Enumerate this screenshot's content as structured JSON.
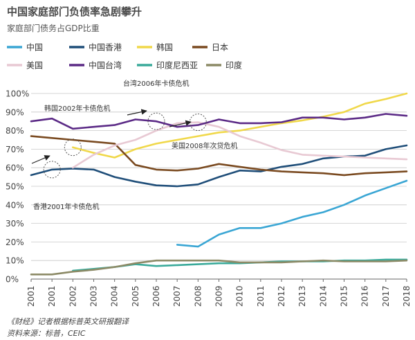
{
  "header": {
    "title": "中国家庭部门负债率急剧攀升",
    "subtitle": "家庭部门债务占GDP比重"
  },
  "footer": {
    "note": "《财经》记者根据标普英文研报翻译",
    "source": "资料来源：标普，CEIC"
  },
  "colors": {
    "中国": "#3aa6d4",
    "中国香港": "#1f4e79",
    "韩国": "#f0d84a",
    "日本": "#7a4a20",
    "美国": "#e8c9d3",
    "中国台湾": "#5b2a86",
    "印度尼西亚": "#3aaa9a",
    "印度": "#8c8a66"
  },
  "chart_data": {
    "type": "line",
    "title": "中国家庭部门负债率急剧攀升",
    "subtitle": "家庭部门债务占GDP比重",
    "categories": [
      "2001",
      "2001",
      "2002",
      "2003",
      "2004",
      "2005",
      "2006",
      "2007",
      "2008",
      "2009",
      "2010",
      "2011",
      "2012",
      "2013",
      "2014",
      "2015",
      "2016",
      "2017",
      "2018"
    ],
    "y_ticks": [
      "0%",
      "10%",
      "20%",
      "30%",
      "40%",
      "50%",
      "60%",
      "70%",
      "80%",
      "90%",
      "100%"
    ],
    "ylim": [
      0,
      100
    ],
    "grid": true,
    "legend_position": "top",
    "series": [
      {
        "name": "中国",
        "values": [
          null,
          null,
          null,
          null,
          null,
          null,
          null,
          18.5,
          17.5,
          24,
          27.5,
          27.5,
          30,
          33.5,
          36,
          40,
          45,
          49,
          53
        ]
      },
      {
        "name": "中国香港",
        "values": [
          56,
          59,
          59.5,
          59,
          55,
          52.5,
          50.5,
          50,
          51,
          55,
          58.5,
          58,
          60.5,
          62,
          65,
          66,
          66.5,
          70,
          72
        ]
      },
      {
        "name": "韩国",
        "values": [
          null,
          null,
          71,
          68,
          65.5,
          70,
          73,
          75,
          77,
          79,
          80,
          82,
          84,
          85.5,
          87.5,
          90,
          94.5,
          97,
          100
        ]
      },
      {
        "name": "日本",
        "values": [
          77,
          76,
          75,
          74,
          73,
          61.5,
          59,
          58.5,
          59.5,
          62,
          60.5,
          59,
          58,
          57.5,
          57,
          56,
          57,
          57.5,
          58
        ]
      },
      {
        "name": "美国",
        "values": [
          null,
          null,
          60,
          67,
          72,
          75,
          80,
          84,
          84.5,
          82,
          77,
          73.5,
          69.5,
          67,
          66.5,
          66,
          65.5,
          65,
          64.5
        ]
      },
      {
        "name": "中国台湾",
        "values": [
          85,
          86.5,
          81,
          82,
          83,
          86,
          85,
          82,
          83,
          86,
          84,
          84,
          84.5,
          87,
          87,
          86,
          87,
          89,
          88
        ]
      },
      {
        "name": "印度尼西亚",
        "values": [
          null,
          null,
          4.5,
          5.5,
          6.5,
          8,
          7,
          7.5,
          8,
          8.5,
          8.5,
          9,
          9.5,
          9.5,
          9.5,
          10,
          10,
          10.5,
          10.5
        ]
      },
      {
        "name": "印度",
        "values": [
          2.5,
          2.5,
          4,
          5,
          6.5,
          8.5,
          10,
          10,
          10,
          10,
          9,
          9,
          9,
          9.5,
          10,
          9.5,
          9.5,
          9.5,
          10
        ]
      }
    ],
    "annotations": [
      {
        "text": "台湾2006年卡债危机",
        "target": {
          "x_index": 6,
          "y": 85
        }
      },
      {
        "text": "韩国2002年卡债危机",
        "target": {
          "x_index": 2,
          "y": 71
        }
      },
      {
        "text": "美国2008年次贷危机",
        "target": {
          "x_index": 8,
          "y": 84.5
        }
      },
      {
        "text": "香港2001年卡债危机",
        "target": {
          "x_index": 1,
          "y": 59
        }
      }
    ]
  }
}
